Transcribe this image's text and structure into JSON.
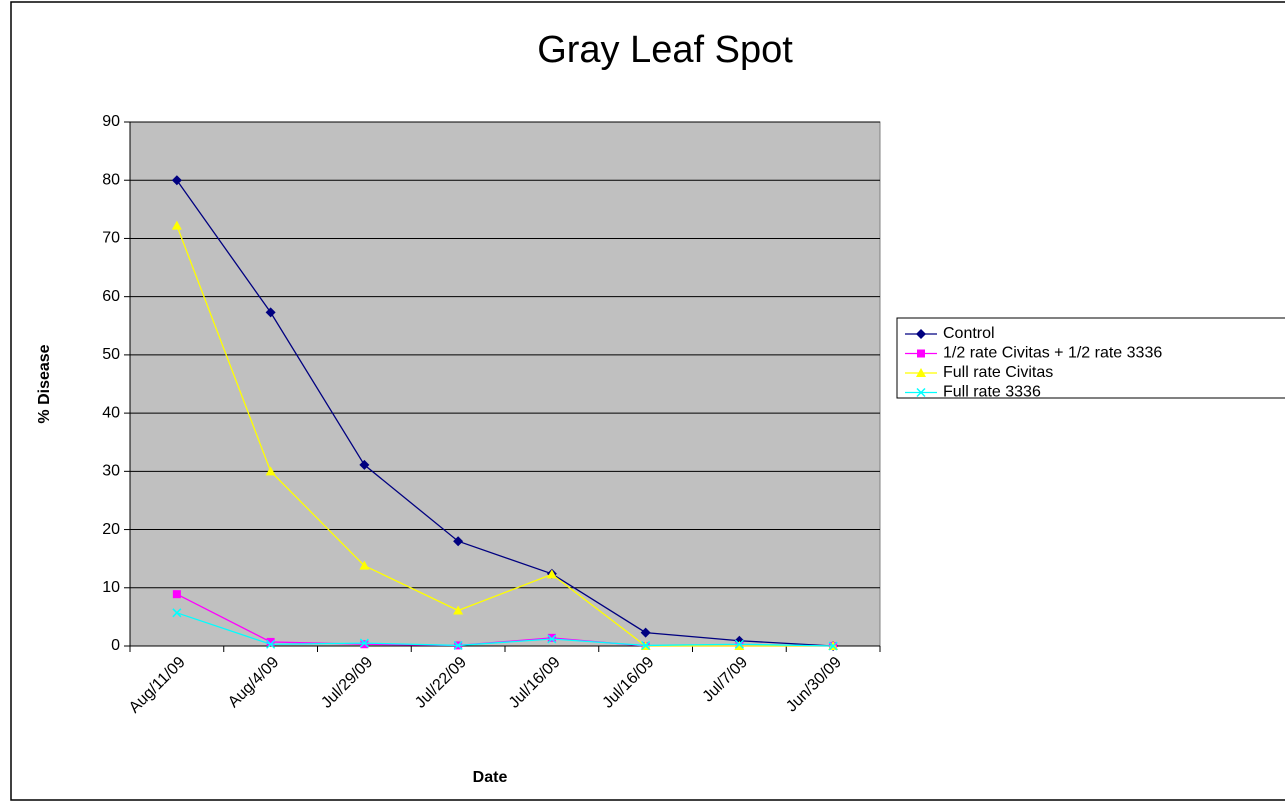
{
  "chart_data": {
    "type": "line",
    "title": "Gray Leaf Spot",
    "x_label": "Date",
    "y_label": "% Disease",
    "categories": [
      "Aug/11/09",
      "Aug/4/09",
      "Jul/29/09",
      "Jul/22/09",
      "Jul/16/09",
      "Jul/16/09",
      "Jul/7/09",
      "Jun/30/09"
    ],
    "series": [
      {
        "name": "Control",
        "color": "#000080",
        "marker": "diamond",
        "values": [
          80,
          57.3,
          31.1,
          18,
          12.4,
          2.3,
          0.9,
          0
        ]
      },
      {
        "name": "1/2 rate Civitas + 1/2 rate 3336",
        "color": "#ff00ff",
        "marker": "square",
        "values": [
          8.9,
          0.7,
          0.3,
          0.1,
          1.4,
          0,
          0,
          0
        ]
      },
      {
        "name": "Full rate Civitas",
        "color": "#ffff00",
        "marker": "triangle",
        "values": [
          72.2,
          30,
          13.8,
          6.1,
          12.3,
          0,
          0,
          0
        ]
      },
      {
        "name": "Full rate 3336",
        "color": "#00ffff",
        "marker": "x",
        "values": [
          5.7,
          0.3,
          0.5,
          0.1,
          1.2,
          0.1,
          0.3,
          0
        ]
      }
    ],
    "ylim": [
      0,
      90
    ],
    "yticks": [
      0,
      10,
      20,
      30,
      40,
      50,
      60,
      70,
      80,
      90
    ],
    "grid": true,
    "plot_background": "#c0c0c0",
    "legend": "right"
  }
}
